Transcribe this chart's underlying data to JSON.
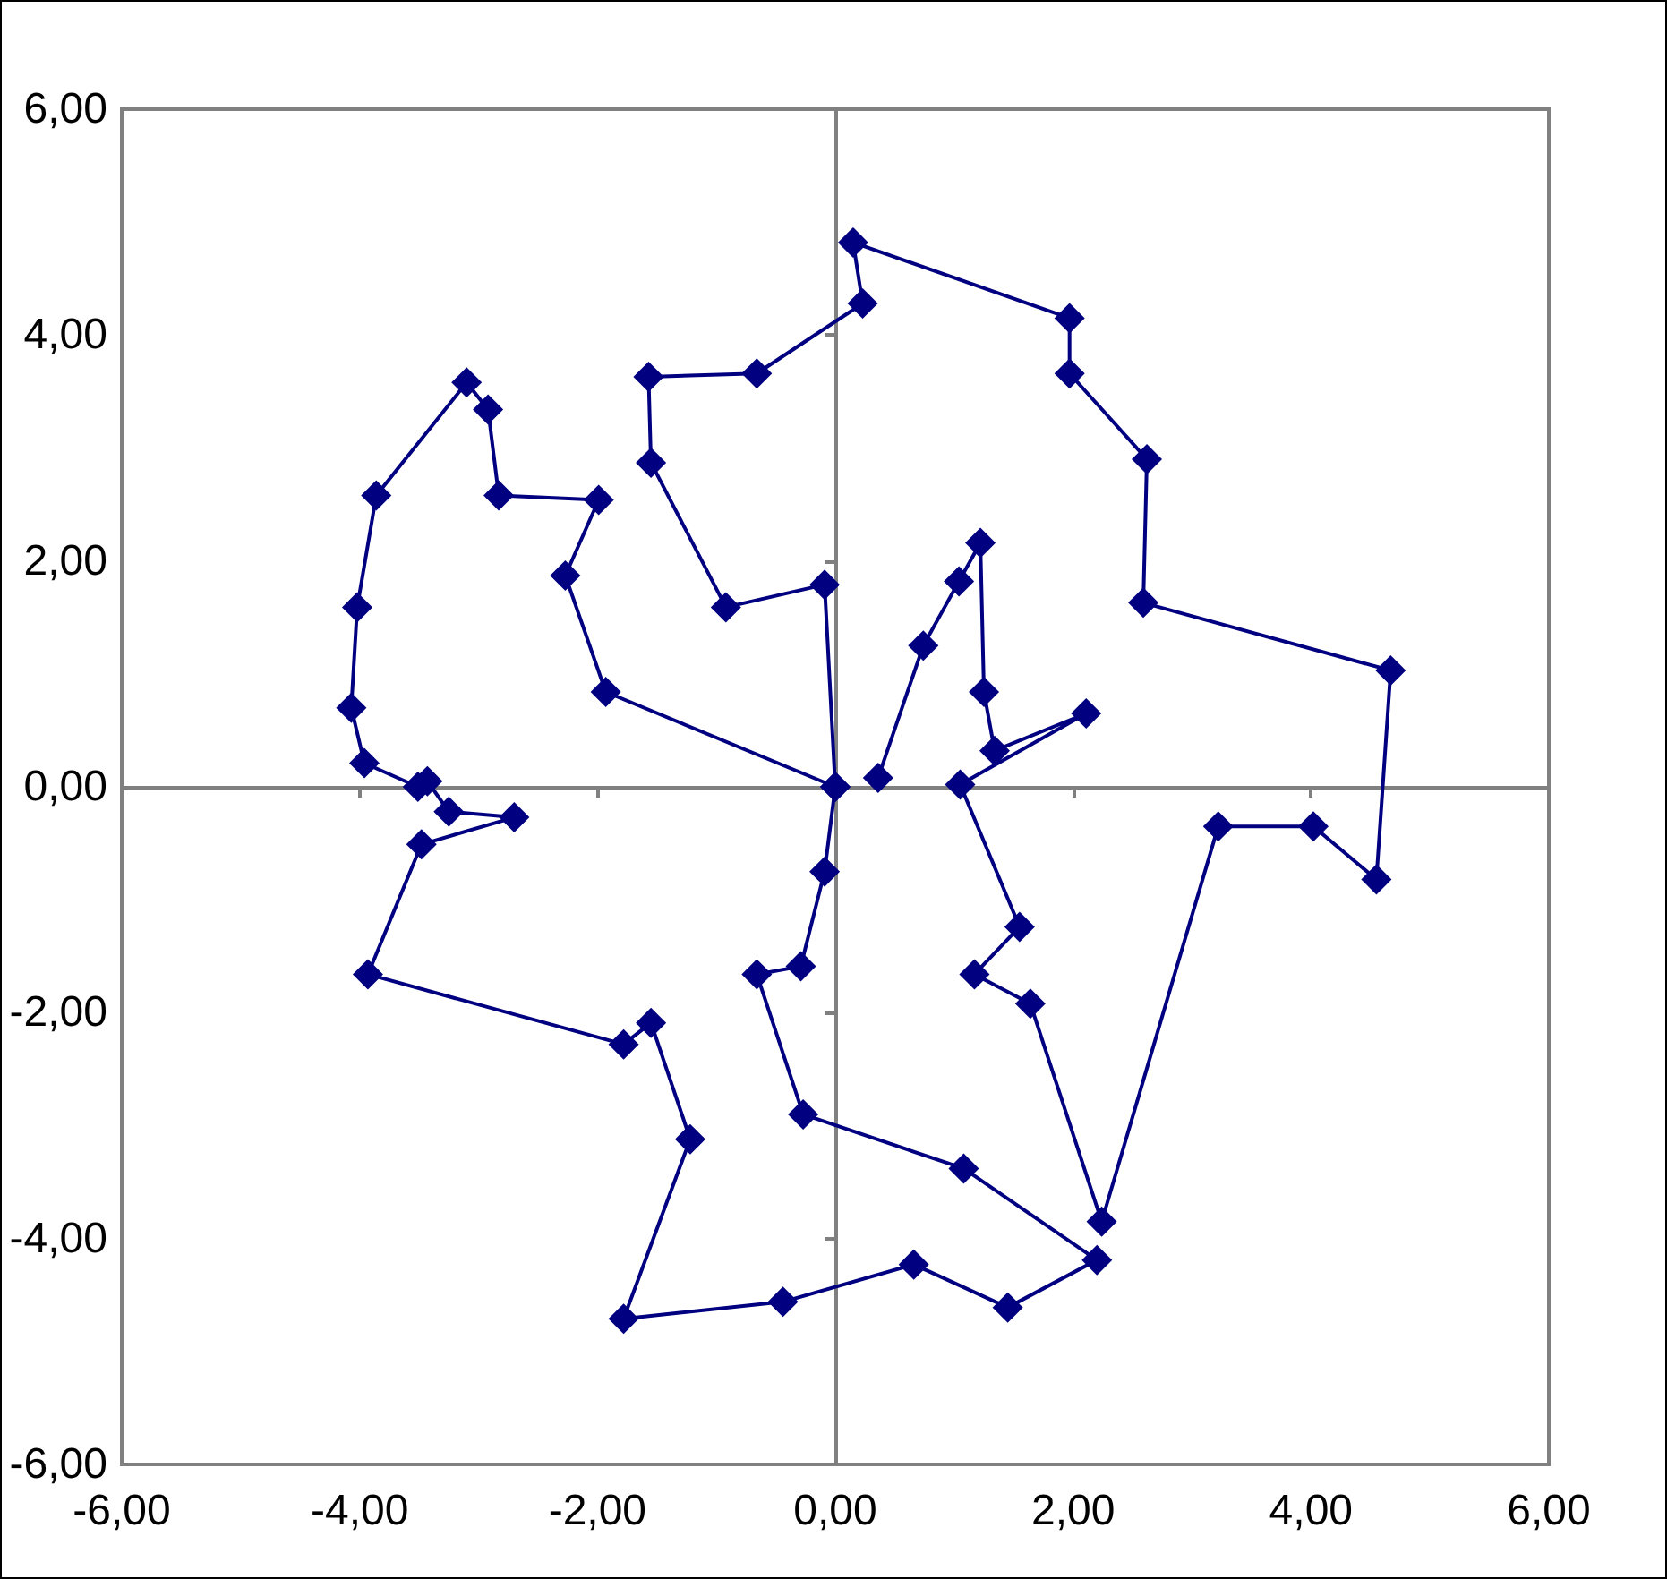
{
  "chart_data": {
    "type": "line",
    "marker": "diamond",
    "line_style": "solid",
    "xlim": [
      -6,
      6
    ],
    "ylim": [
      -6,
      6
    ],
    "xticks": [
      {
        "value": -6,
        "label": "-6,00"
      },
      {
        "value": -4,
        "label": "-4,00"
      },
      {
        "value": -2,
        "label": "-2,00"
      },
      {
        "value": 0,
        "label": "0,00"
      },
      {
        "value": 2,
        "label": "2,00"
      },
      {
        "value": 4,
        "label": "4,00"
      },
      {
        "value": 6,
        "label": "6,00"
      }
    ],
    "yticks": [
      {
        "value": -6,
        "label": "-6,00"
      },
      {
        "value": -4,
        "label": "-4,00"
      },
      {
        "value": -2,
        "label": "-2,00"
      },
      {
        "value": 0,
        "label": "0,00"
      },
      {
        "value": 2,
        "label": "2,00"
      },
      {
        "value": 4,
        "label": "4,00"
      },
      {
        "value": 6,
        "label": "6,00"
      }
    ],
    "series": [
      {
        "color": "#000080",
        "x": [
          0.36,
          0.74,
          1.04,
          1.22,
          1.25,
          1.34,
          2.11,
          1.05,
          1.55,
          1.17,
          1.64,
          2.24,
          3.22,
          4.02,
          4.55,
          4.67,
          2.59,
          2.62,
          1.97,
          1.97,
          0.15,
          0.23,
          -0.66,
          -1.57,
          -1.55,
          -0.92,
          -0.09,
          0,
          -1.93,
          -2.27,
          -1.99,
          -2.83,
          -2.92,
          -3.1,
          -3.86,
          -4.02,
          -4.07,
          -3.96,
          -3.51,
          -3.43,
          -3.25,
          -2.7,
          -3.48,
          -3.93,
          -1.78,
          -1.55,
          -1.22,
          -1.78,
          -0.44,
          0.66,
          1.45,
          2.2,
          1.08,
          -0.27,
          -0.66,
          -0.29,
          -0.09,
          0
        ],
        "values": [
          0.08,
          1.25,
          1.82,
          2.16,
          0.84,
          0.32,
          0.65,
          0.02,
          -1.24,
          -1.66,
          -1.92,
          -3.85,
          -0.35,
          -0.35,
          -0.82,
          1.03,
          1.63,
          2.9,
          3.66,
          4.15,
          4.82,
          4.28,
          3.66,
          3.63,
          2.87,
          1.59,
          1.79,
          0,
          0.84,
          1.87,
          2.54,
          2.58,
          3.34,
          3.58,
          2.58,
          1.59,
          0.7,
          0.21,
          0,
          0.05,
          -0.22,
          -0.27,
          -0.51,
          -1.66,
          -2.28,
          -2.09,
          -3.12,
          -4.71,
          -4.56,
          -4.23,
          -4.61,
          -4.19,
          -3.38,
          -2.9,
          -1.66,
          -1.59,
          -0.75,
          0
        ]
      }
    ]
  }
}
